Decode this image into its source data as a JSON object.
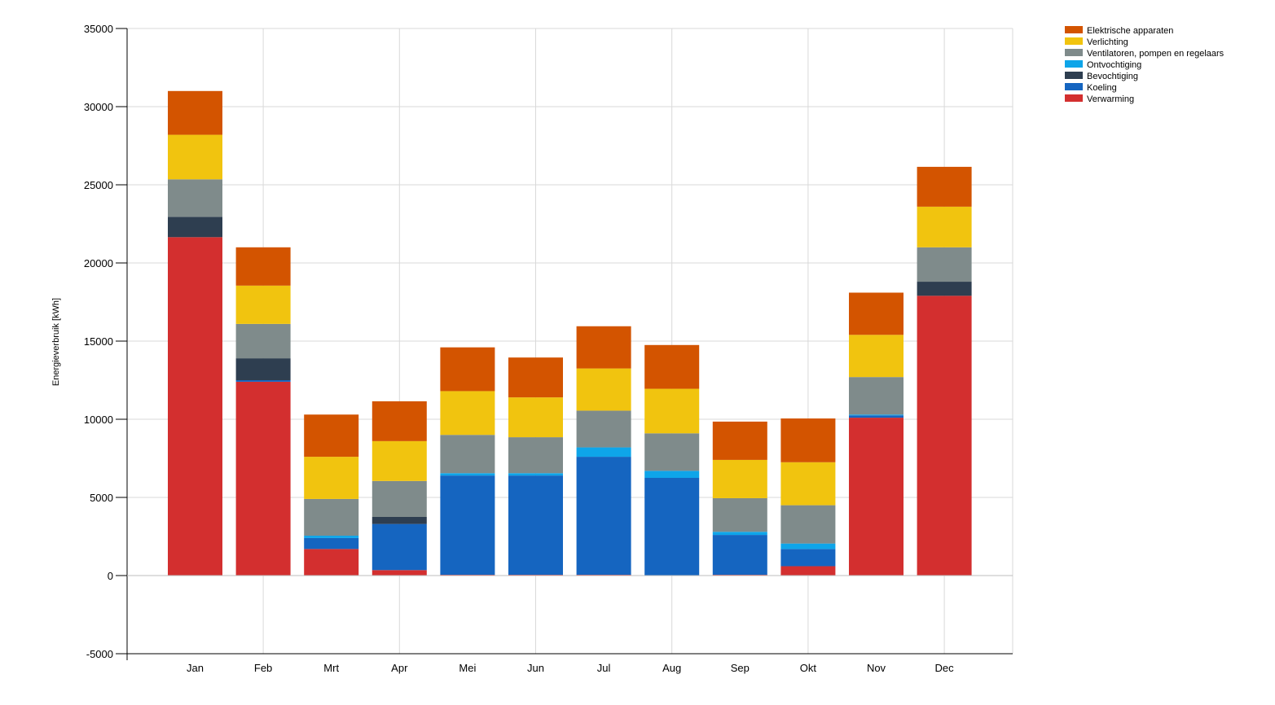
{
  "chart_data": {
    "type": "bar",
    "stacked": true,
    "title": "",
    "xlabel": "",
    "ylabel": "Energieverbruik [kWh]",
    "ylim": [
      -5000,
      35000
    ],
    "yticks": [
      -5000,
      0,
      5000,
      10000,
      15000,
      20000,
      25000,
      30000,
      35000
    ],
    "grid": true,
    "legend_position": "top-right",
    "categories": [
      "Jan",
      "Feb",
      "Mrt",
      "Apr",
      "Mei",
      "Jun",
      "Jul",
      "Aug",
      "Sep",
      "Okt",
      "Nov",
      "Dec"
    ],
    "series": [
      {
        "name": "Verwarming",
        "color": "#d32f2f",
        "values": [
          21650,
          12400,
          1700,
          350,
          50,
          50,
          50,
          0,
          50,
          600,
          10100,
          17900
        ]
      },
      {
        "name": "Koeling",
        "color": "#1565c0",
        "values": [
          0,
          100,
          700,
          2950,
          6350,
          6350,
          7550,
          6250,
          2550,
          1100,
          150,
          0
        ]
      },
      {
        "name": "Bevochtiging",
        "color": "#2e3e50",
        "values": [
          1300,
          1400,
          0,
          450,
          0,
          0,
          0,
          0,
          0,
          0,
          0,
          900
        ]
      },
      {
        "name": "Ontvochtiging",
        "color": "#0ea5e9",
        "values": [
          0,
          0,
          150,
          0,
          150,
          150,
          600,
          450,
          200,
          350,
          50,
          0
        ]
      },
      {
        "name": "Ventilatoren, pompen en regelaars",
        "color": "#7f8b8b",
        "values": [
          2400,
          2200,
          2350,
          2300,
          2450,
          2300,
          2350,
          2400,
          2150,
          2450,
          2400,
          2200
        ]
      },
      {
        "name": "Verlichting",
        "color": "#f1c40f",
        "values": [
          2850,
          2450,
          2700,
          2550,
          2800,
          2550,
          2700,
          2850,
          2450,
          2750,
          2700,
          2600
        ]
      },
      {
        "name": "Elektrische apparaten",
        "color": "#d35400",
        "values": [
          2800,
          2450,
          2700,
          2550,
          2800,
          2550,
          2700,
          2800,
          2450,
          2800,
          2700,
          2550
        ]
      }
    ],
    "legend_order": [
      "Elektrische apparaten",
      "Verlichting",
      "Ventilatoren, pompen en regelaars",
      "Ontvochtiging",
      "Bevochtiging",
      "Koeling",
      "Verwarming"
    ]
  }
}
